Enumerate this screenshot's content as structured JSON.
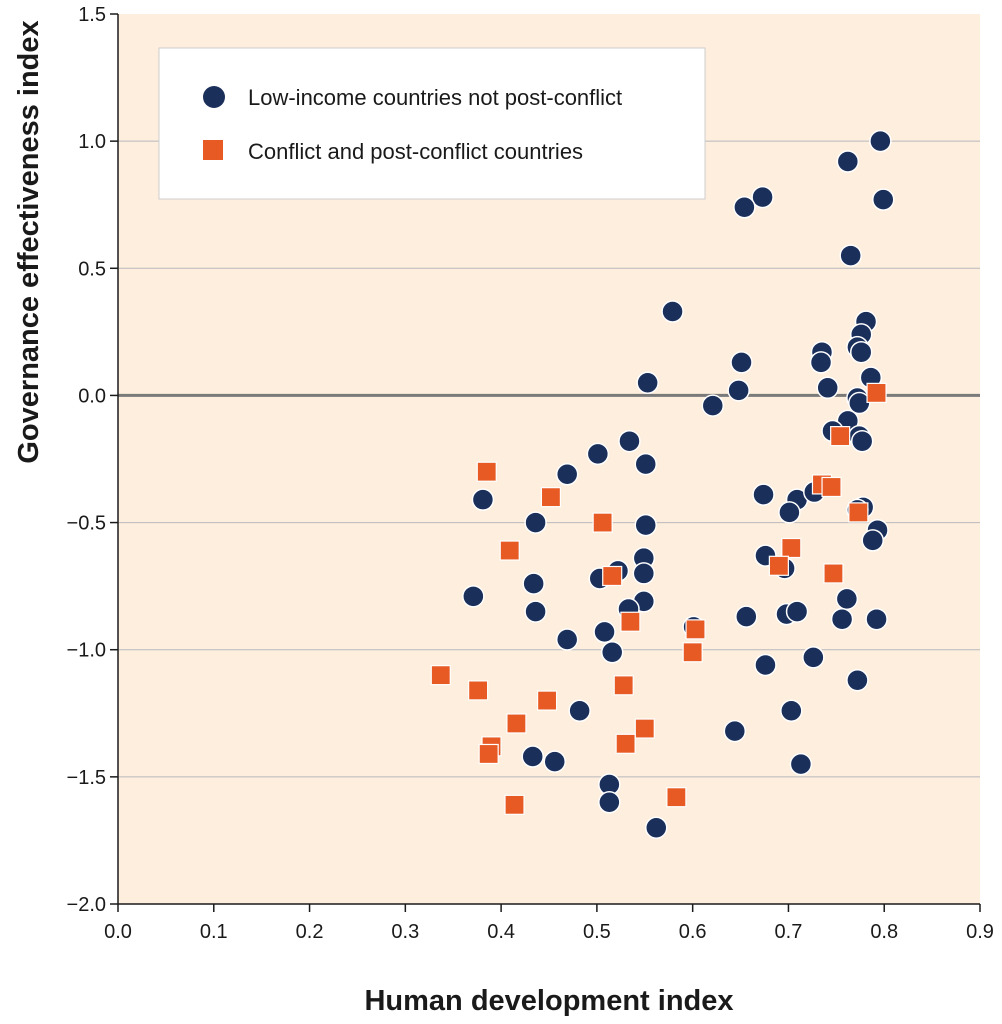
{
  "colors": {
    "plot_background": "#fdeedd",
    "gridline": "#b9b9bd",
    "zero_line": "#7a7a7a",
    "axis": "#1a1a1a",
    "low_income": "#1b2f5b",
    "conflict": "#e85a24",
    "marker_outline": "#ffffff"
  },
  "chart_data": {
    "type": "scatter",
    "title": "",
    "xlabel": "Human development index",
    "ylabel": "Governance effectiveness index",
    "xlim": [
      0.0,
      0.9
    ],
    "ylim": [
      -2.0,
      1.5
    ],
    "x_ticks": [
      "0.0",
      "0.1",
      "0.2",
      "0.3",
      "0.4",
      "0.5",
      "0.6",
      "0.7",
      "0.8",
      "0.9"
    ],
    "y_ticks": [
      "1.5",
      "1.0",
      "0.5",
      "0.0",
      "−0.5",
      "−1.0",
      "−1.5",
      "−2.0"
    ],
    "grid": "horizontal",
    "legend_position": "top-left",
    "series": [
      {
        "name": "Low-income countries not post-conflict",
        "marker": "circle",
        "color": "#1b2f5b",
        "points": [
          [
            0.796,
            1.0
          ],
          [
            0.799,
            0.77
          ],
          [
            0.762,
            0.92
          ],
          [
            0.673,
            0.78
          ],
          [
            0.654,
            0.74
          ],
          [
            0.765,
            0.55
          ],
          [
            0.579,
            0.33
          ],
          [
            0.781,
            0.29
          ],
          [
            0.776,
            0.24
          ],
          [
            0.772,
            0.19
          ],
          [
            0.776,
            0.17
          ],
          [
            0.735,
            0.17
          ],
          [
            0.734,
            0.13
          ],
          [
            0.651,
            0.13
          ],
          [
            0.786,
            0.07
          ],
          [
            0.553,
            0.05
          ],
          [
            0.741,
            0.03
          ],
          [
            0.648,
            0.02
          ],
          [
            0.621,
            -0.04
          ],
          [
            0.772,
            -0.01
          ],
          [
            0.774,
            -0.03
          ],
          [
            0.762,
            -0.1
          ],
          [
            0.746,
            -0.14
          ],
          [
            0.774,
            -0.16
          ],
          [
            0.777,
            -0.18
          ],
          [
            0.534,
            -0.18
          ],
          [
            0.501,
            -0.23
          ],
          [
            0.551,
            -0.27
          ],
          [
            0.469,
            -0.31
          ],
          [
            0.381,
            -0.41
          ],
          [
            0.436,
            -0.5
          ],
          [
            0.551,
            -0.51
          ],
          [
            0.674,
            -0.39
          ],
          [
            0.709,
            -0.41
          ],
          [
            0.727,
            -0.38
          ],
          [
            0.701,
            -0.46
          ],
          [
            0.778,
            -0.44
          ],
          [
            0.772,
            -0.45
          ],
          [
            0.793,
            -0.53
          ],
          [
            0.788,
            -0.57
          ],
          [
            0.549,
            -0.64
          ],
          [
            0.522,
            -0.69
          ],
          [
            0.549,
            -0.7
          ],
          [
            0.503,
            -0.72
          ],
          [
            0.434,
            -0.74
          ],
          [
            0.676,
            -0.63
          ],
          [
            0.696,
            -0.68
          ],
          [
            0.371,
            -0.79
          ],
          [
            0.549,
            -0.81
          ],
          [
            0.533,
            -0.84
          ],
          [
            0.436,
            -0.85
          ],
          [
            0.698,
            -0.86
          ],
          [
            0.709,
            -0.85
          ],
          [
            0.656,
            -0.87
          ],
          [
            0.761,
            -0.8
          ],
          [
            0.756,
            -0.88
          ],
          [
            0.792,
            -0.88
          ],
          [
            0.601,
            -0.91
          ],
          [
            0.508,
            -0.93
          ],
          [
            0.469,
            -0.96
          ],
          [
            0.516,
            -1.01
          ],
          [
            0.676,
            -1.06
          ],
          [
            0.726,
            -1.03
          ],
          [
            0.772,
            -1.12
          ],
          [
            0.482,
            -1.24
          ],
          [
            0.703,
            -1.24
          ],
          [
            0.644,
            -1.32
          ],
          [
            0.433,
            -1.42
          ],
          [
            0.456,
            -1.44
          ],
          [
            0.713,
            -1.45
          ],
          [
            0.513,
            -1.53
          ],
          [
            0.513,
            -1.6
          ],
          [
            0.562,
            -1.7
          ]
        ]
      },
      {
        "name": "Conflict and post-conflict countries",
        "marker": "square",
        "color": "#e85a24",
        "points": [
          [
            0.792,
            0.01
          ],
          [
            0.754,
            -0.16
          ],
          [
            0.385,
            -0.3
          ],
          [
            0.452,
            -0.4
          ],
          [
            0.506,
            -0.5
          ],
          [
            0.409,
            -0.61
          ],
          [
            0.735,
            -0.35
          ],
          [
            0.745,
            -0.36
          ],
          [
            0.773,
            -0.46
          ],
          [
            0.703,
            -0.6
          ],
          [
            0.69,
            -0.67
          ],
          [
            0.747,
            -0.7
          ],
          [
            0.516,
            -0.71
          ],
          [
            0.535,
            -0.89
          ],
          [
            0.603,
            -0.92
          ],
          [
            0.6,
            -1.01
          ],
          [
            0.337,
            -1.1
          ],
          [
            0.376,
            -1.16
          ],
          [
            0.528,
            -1.14
          ],
          [
            0.448,
            -1.2
          ],
          [
            0.416,
            -1.29
          ],
          [
            0.55,
            -1.31
          ],
          [
            0.39,
            -1.38
          ],
          [
            0.387,
            -1.41
          ],
          [
            0.53,
            -1.37
          ],
          [
            0.414,
            -1.61
          ],
          [
            0.583,
            -1.58
          ]
        ]
      }
    ]
  }
}
